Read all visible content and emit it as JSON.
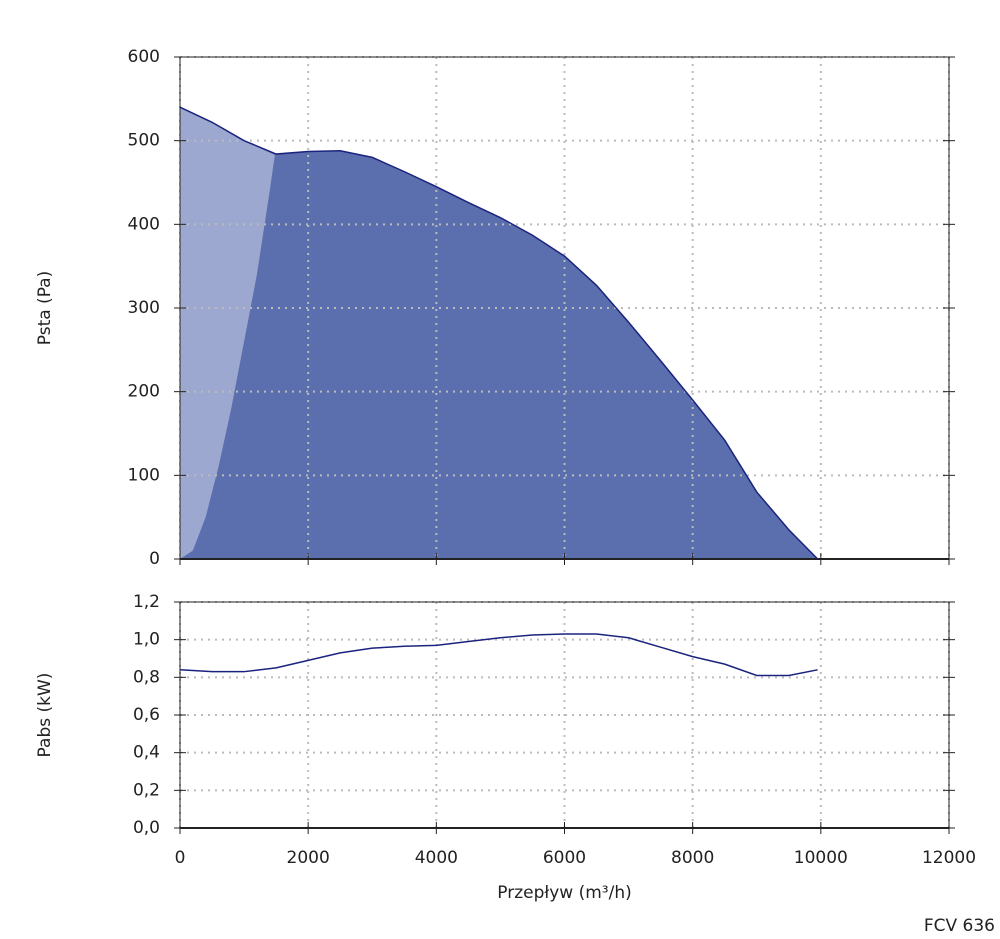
{
  "chart_data": [
    {
      "type": "area",
      "ylabel": "Psta (Pa)",
      "series": [
        {
          "color": "#5b6fae",
          "line_color": "#1a237e",
          "x": [
            0,
            500,
            1000,
            1500,
            2000,
            2500,
            3000,
            3500,
            4000,
            4500,
            5000,
            5500,
            6000,
            6500,
            7000,
            7500,
            8000,
            8500,
            9000,
            9500,
            9950
          ],
          "values": [
            540,
            522,
            500,
            484,
            487,
            488,
            480,
            463,
            445,
            426,
            408,
            387,
            362,
            327,
            283,
            237,
            190,
            142,
            80,
            35,
            0
          ]
        },
        {
          "color": "#9ca8d0",
          "x": [
            0,
            200,
            400,
            600,
            800,
            1000,
            1200,
            1400,
            1480
          ],
          "values": [
            0,
            10,
            50,
            110,
            180,
            260,
            340,
            440,
            483
          ]
        }
      ],
      "xlim": [
        0,
        12000
      ],
      "xticks": [
        0,
        2000,
        4000,
        6000,
        8000,
        10000,
        12000
      ],
      "ylim": [
        0,
        600
      ],
      "yticks": [
        0,
        100,
        200,
        300,
        400,
        500,
        600
      ],
      "grid": true
    },
    {
      "type": "line",
      "ylabel": "Pabs (kW)",
      "xlabel": "Przepływ (m³/h)",
      "series": [
        {
          "color": "#1a237e",
          "x": [
            0,
            500,
            1000,
            1500,
            2000,
            2500,
            3000,
            3500,
            4000,
            4500,
            5000,
            5500,
            6000,
            6500,
            7000,
            7500,
            8000,
            8500,
            9000,
            9500,
            9950
          ],
          "values": [
            0.84,
            0.83,
            0.83,
            0.85,
            0.89,
            0.93,
            0.955,
            0.965,
            0.97,
            0.99,
            1.01,
            1.025,
            1.03,
            1.03,
            1.01,
            0.96,
            0.91,
            0.87,
            0.81,
            0.81,
            0.84
          ]
        }
      ],
      "xlim": [
        0,
        12000
      ],
      "xticks": [
        0,
        2000,
        4000,
        6000,
        8000,
        10000,
        12000
      ],
      "ylim": [
        0,
        1.2
      ],
      "yticks": [
        {
          "value": 0,
          "label": "0,0"
        },
        {
          "value": 0.2,
          "label": "0,2"
        },
        {
          "value": 0.4,
          "label": "0,4"
        },
        {
          "value": 0.6,
          "label": "0,6"
        },
        {
          "value": 0.8,
          "label": "0,8"
        },
        {
          "value": 1.0,
          "label": "1,0"
        },
        {
          "value": 1.2,
          "label": "1,2"
        }
      ],
      "grid": true
    }
  ],
  "footer": "FCV 636"
}
